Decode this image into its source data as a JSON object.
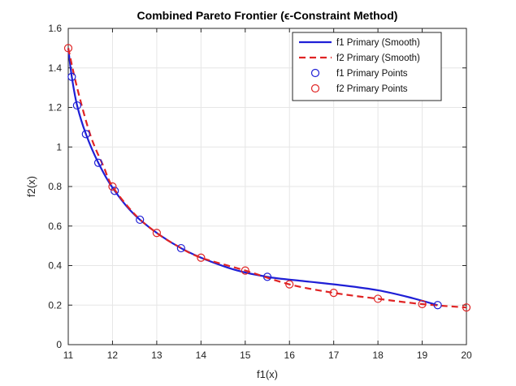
{
  "chart_data": {
    "type": "line",
    "title": "Combined Pareto Frontier (ϵ-Constraint Method)",
    "xlabel": "f1(x)",
    "ylabel": "f2(x)",
    "xlim": [
      11,
      20
    ],
    "ylim": [
      0,
      1.6
    ],
    "xticks": [
      "11",
      "12",
      "13",
      "14",
      "15",
      "16",
      "17",
      "18",
      "19",
      "20"
    ],
    "yticks": [
      "0",
      "0.2",
      "0.4",
      "0.6",
      "0.8",
      "1",
      "1.2",
      "1.4",
      "1.6"
    ],
    "grid": true,
    "legend_position": "top-right",
    "colors": {
      "f1": "#1f1fd6",
      "f2": "#e02424",
      "grid": "#e6e6e6",
      "axes": "#262626"
    },
    "series": [
      {
        "name": "f1 Primary (Smooth)",
        "style": "solid-line",
        "color": "#1f1fd6",
        "x": [
          11.0,
          11.08,
          11.2,
          11.4,
          11.68,
          12.05,
          12.62,
          13.55,
          14.6,
          15.5,
          16.3,
          17.2,
          18.0,
          18.7,
          19.35
        ],
        "y": [
          1.5,
          1.355,
          1.21,
          1.065,
          0.92,
          0.778,
          0.632,
          0.488,
          0.39,
          0.343,
          0.322,
          0.3,
          0.275,
          0.24,
          0.2
        ]
      },
      {
        "name": "f2 Primary (Smooth)",
        "style": "dashed-line",
        "color": "#e02424",
        "x": [
          11.0,
          11.2,
          11.5,
          11.8,
          12.0,
          12.5,
          13.0,
          13.5,
          14.0,
          15.0,
          16.0,
          17.0,
          18.0,
          19.0,
          20.0
        ],
        "y": [
          1.5,
          1.3,
          1.06,
          0.9,
          0.8,
          0.66,
          0.565,
          0.495,
          0.44,
          0.375,
          0.305,
          0.262,
          0.232,
          0.205,
          0.188
        ]
      },
      {
        "name": "f1 Primary Points",
        "style": "circle-markers",
        "color": "#1f1fd6",
        "x": [
          11.08,
          11.2,
          11.4,
          11.68,
          12.05,
          12.62,
          13.55,
          15.5,
          19.35
        ],
        "y": [
          1.355,
          1.21,
          1.065,
          0.92,
          0.778,
          0.632,
          0.488,
          0.343,
          0.2
        ]
      },
      {
        "name": "f2 Primary Points",
        "style": "circle-markers",
        "color": "#e02424",
        "x": [
          11.0,
          12.0,
          13.0,
          14.0,
          15.0,
          16.0,
          17.0,
          18.0,
          19.0,
          20.0
        ],
        "y": [
          1.5,
          0.8,
          0.565,
          0.44,
          0.375,
          0.305,
          0.262,
          0.232,
          0.205,
          0.188
        ]
      }
    ]
  }
}
